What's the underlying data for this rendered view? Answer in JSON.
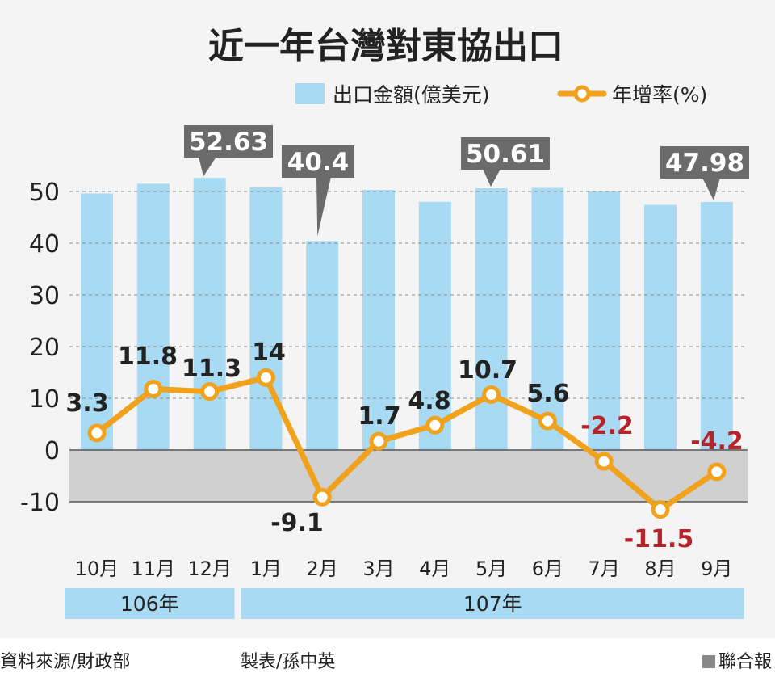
{
  "chart_data": {
    "type": "bar",
    "title": "近一年台灣對東協出口",
    "categories": [
      "10月",
      "11月",
      "12月",
      "1月",
      "2月",
      "3月",
      "4月",
      "5月",
      "6月",
      "7月",
      "8月",
      "9月"
    ],
    "year_groups": [
      {
        "label": "106年",
        "count": 3
      },
      {
        "label": "107年",
        "count": 9
      }
    ],
    "series": [
      {
        "name": "出口金額(億美元)",
        "type": "bar",
        "color": "#a8daf3",
        "values": [
          49.6,
          51.5,
          52.63,
          50.8,
          40.4,
          50.3,
          48.0,
          50.61,
          50.7,
          50.0,
          47.4,
          47.98
        ],
        "callouts": [
          {
            "index": 2,
            "label": "52.63"
          },
          {
            "index": 4,
            "label": "40.4"
          },
          {
            "index": 7,
            "label": "50.61"
          },
          {
            "index": 11,
            "label": "47.98"
          }
        ]
      },
      {
        "name": "年增率(%)",
        "type": "line",
        "color": "#f0a21c",
        "values": [
          3.3,
          11.8,
          11.3,
          14,
          -9.1,
          1.7,
          4.8,
          10.7,
          5.6,
          -2.2,
          -11.5,
          -4.2
        ],
        "labels": [
          "3.3",
          "11.8",
          "11.3",
          "14",
          "-9.1",
          "1.7",
          "4.8",
          "10.7",
          "5.6",
          "-2.2",
          "-11.5",
          "-4.2"
        ]
      }
    ],
    "yticks": [
      -10,
      0,
      10,
      20,
      30,
      40,
      50
    ],
    "ylim": [
      -10,
      50
    ],
    "grid": "dashed horizontal",
    "negative_region_color": "#d0d0d0",
    "negative_label_color": "#b5242a",
    "positive_label_color": "#222222",
    "callout_color": "#6b6b6b",
    "year_band_color": "#a8daf3",
    "legend_position": "top-right"
  },
  "footer": {
    "source": "資料來源/財政部",
    "maker": "製表/孫中英",
    "publisher": "聯合報"
  }
}
